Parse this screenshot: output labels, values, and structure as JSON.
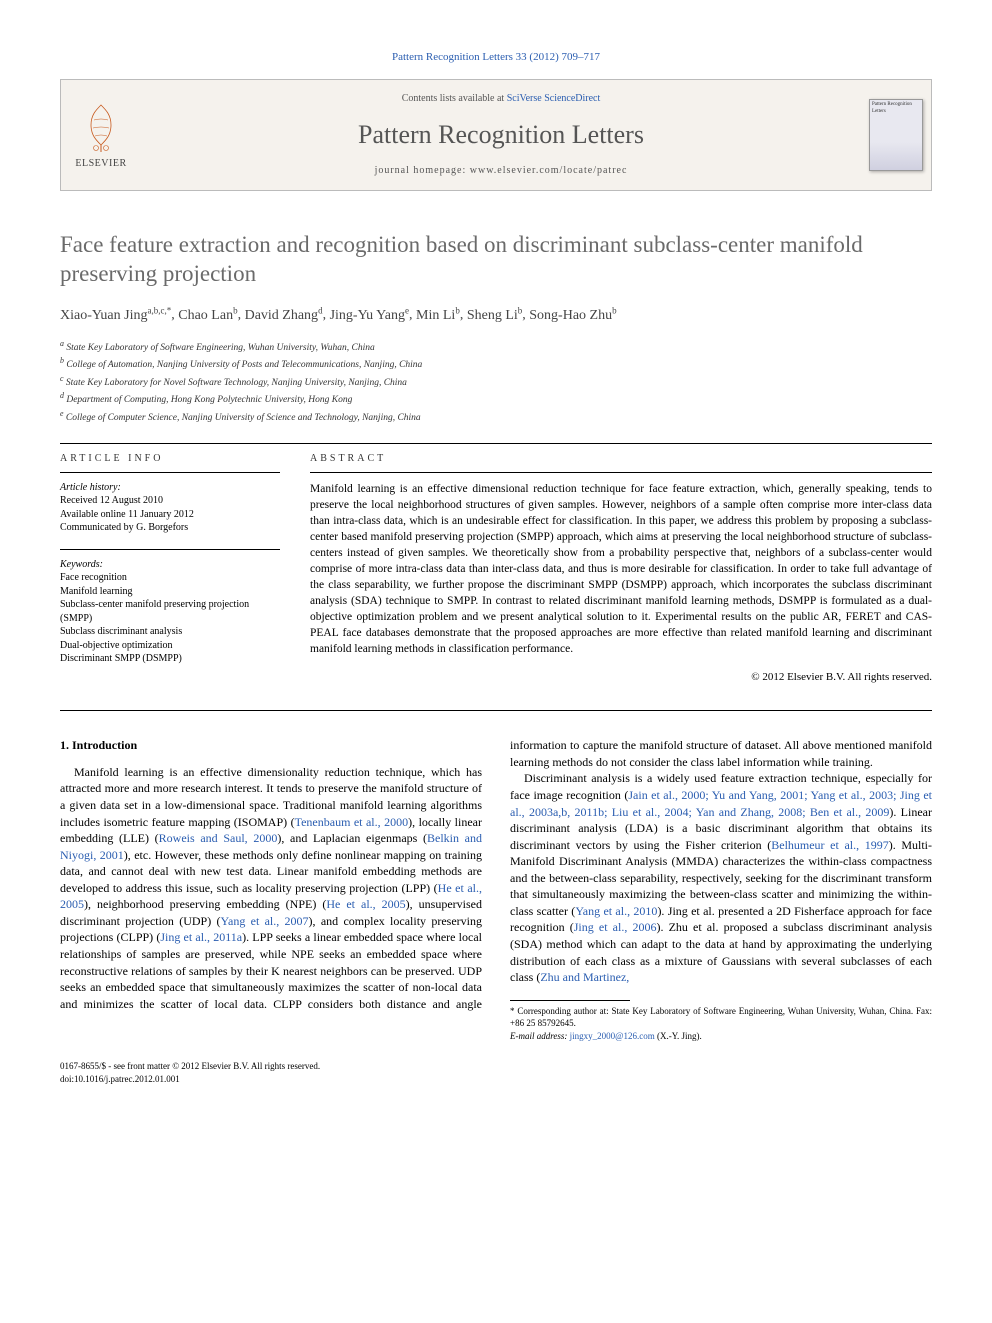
{
  "top_citation": "Pattern Recognition Letters 33 (2012) 709–717",
  "header": {
    "contents_prefix": "Contents lists available at ",
    "contents_link": "SciVerse ScienceDirect",
    "journal_title": "Pattern Recognition Letters",
    "homepage_prefix": "journal homepage: ",
    "homepage_url": "www.elsevier.com/locate/patrec",
    "elsevier_word": "ELSEVIER",
    "cover_text": "Pattern Recognition Letters"
  },
  "article": {
    "title": "Face feature extraction and recognition based on discriminant subclass-center manifold preserving projection",
    "authors_html": "Xiao-Yuan Jing",
    "authors": [
      {
        "name": "Xiao-Yuan Jing",
        "sup": "a,b,c,*"
      },
      {
        "name": "Chao Lan",
        "sup": "b"
      },
      {
        "name": "David Zhang",
        "sup": "d"
      },
      {
        "name": "Jing-Yu Yang",
        "sup": "e"
      },
      {
        "name": "Min Li",
        "sup": "b"
      },
      {
        "name": "Sheng Li",
        "sup": "b"
      },
      {
        "name": "Song-Hao Zhu",
        "sup": "b"
      }
    ],
    "affiliations": [
      {
        "sup": "a",
        "text": "State Key Laboratory of Software Engineering, Wuhan University, Wuhan, China"
      },
      {
        "sup": "b",
        "text": "College of Automation, Nanjing University of Posts and Telecommunications, Nanjing, China"
      },
      {
        "sup": "c",
        "text": "State Key Laboratory for Novel Software Technology, Nanjing University, Nanjing, China"
      },
      {
        "sup": "d",
        "text": "Department of Computing, Hong Kong Polytechnic University, Hong Kong"
      },
      {
        "sup": "e",
        "text": "College of Computer Science, Nanjing University of Science and Technology, Nanjing, China"
      }
    ]
  },
  "info": {
    "label": "ARTICLE INFO",
    "history_label": "Article history:",
    "history": [
      "Received 12 August 2010",
      "Available online 11 January 2012",
      "Communicated by G. Borgefors"
    ],
    "keywords_label": "Keywords:",
    "keywords": [
      "Face recognition",
      "Manifold learning",
      "Subclass-center manifold preserving projection (SMPP)",
      "Subclass discriminant analysis",
      "Dual-objective optimization",
      "Discriminant SMPP (DSMPP)"
    ]
  },
  "abstract": {
    "label": "ABSTRACT",
    "text": "Manifold learning is an effective dimensional reduction technique for face feature extraction, which, generally speaking, tends to preserve the local neighborhood structures of given samples. However, neighbors of a sample often comprise more inter-class data than intra-class data, which is an undesirable effect for classification. In this paper, we address this problem by proposing a subclass-center based manifold preserving projection (SMPP) approach, which aims at preserving the local neighborhood structure of subclass-centers instead of given samples. We theoretically show from a probability perspective that, neighbors of a subclass-center would comprise of more intra-class data than inter-class data, and thus is more desirable for classification. In order to take full advantage of the class separability, we further propose the discriminant SMPP (DSMPP) approach, which incorporates the subclass discriminant analysis (SDA) technique to SMPP. In contrast to related discriminant manifold learning methods, DSMPP is formulated as a dual-objective optimization problem and we present analytical solution to it. Experimental results on the public AR, FERET and CAS-PEAL face databases demonstrate that the proposed approaches are more effective than related manifold learning and discriminant manifold learning methods in classification performance.",
    "copyright": "© 2012 Elsevier B.V. All rights reserved."
  },
  "body": {
    "heading": "1. Introduction",
    "p1a": "Manifold learning is an effective dimensionality reduction technique, which has attracted more and more research interest. It tends to preserve the manifold structure of a given data set in a low-dimensional space. Traditional manifold learning algorithms includes isometric feature mapping (ISOMAP) (",
    "c1": "Tenenbaum et al., 2000",
    "p1b": "), locally linear embedding (LLE) (",
    "c2": "Roweis and Saul, 2000",
    "p1c": "), and Laplacian eigenmaps (",
    "c3": "Belkin and Niyogi, 2001",
    "p1d": "), etc. However, these methods only define nonlinear mapping on training data, and cannot deal with new test data. Linear manifold embedding methods are developed to address this issue, such as locality preserving projection (LPP) (",
    "c4": "He et al., 2005",
    "p1e": "), neighborhood preserving embedding (NPE) (",
    "c5": "He et al., 2005",
    "p1f": "), unsupervised discriminant projection (UDP) (",
    "c6": "Yang et al., 2007",
    "p1g": "), and complex locality preserving projections (CLPP) (",
    "c7": "Jing et al., 2011a",
    "p1h": "). LPP seeks a linear embedded space where local relationships of samples are preserved, while NPE seeks an embedded space where reconstructive relations of sam",
    "p2a": "ples by their K nearest neighbors can be preserved. UDP seeks an embedded space that simultaneously maximizes the scatter of non-local data and minimizes the scatter of local data. CLPP considers both distance and angle information to capture the manifold structure of dataset. All above mentioned manifold learning methods do not consider the class label information while training.",
    "p3a": "Discriminant analysis is a widely used feature extraction technique, especially for face image recognition (",
    "c8": "Jain et al., 2000; Yu and Yang, 2001; Yang et al., 2003; Jing et al., 2003a,b, 2011b; Liu et al., 2004; Yan and Zhang, 2008; Ben et al., 2009",
    "p3b": "). Linear discriminant analysis (LDA) is a basic discriminant algorithm that obtains its discriminant vectors by using the Fisher criterion (",
    "c9": "Belhumeur et al., 1997",
    "p3c": "). Multi-Manifold Discriminant Analysis (MMDA) characterizes the within-class compactness and the between-class separability, respectively, seeking for the discriminant transform that simultaneously maximizing the between-class scatter and minimizing the within-class scatter (",
    "c10": "Yang et al., 2010",
    "p3d": "). Jing et al. presented a 2D Fisherface approach for face recognition (",
    "c11": "Jing et al., 2006",
    "p3e": "). Zhu et al. proposed a subclass discriminant analysis (SDA) method which can adapt to the data at hand by approximating the underlying distribution of each class as a mixture of Gaussians with several subclasses of each class (",
    "c12": "Zhu and Martinez,"
  },
  "footnotes": {
    "corr": "* Corresponding author at: State Key Laboratory of Software Engineering, Wuhan University, Wuhan, China. Fax: +86 25 85792645.",
    "email_label": "E-mail address: ",
    "email": "jingxy_2000@126.com",
    "email_who": " (X.-Y. Jing)."
  },
  "bottom": {
    "line1": "0167-8655/$ - see front matter © 2012 Elsevier B.V. All rights reserved.",
    "line2": "doi:10.1016/j.patrec.2012.01.001"
  },
  "colors": {
    "link": "#2a5db0",
    "title_gray": "#6a6a6a",
    "muted": "#555555",
    "header_bg": "#f5f2ed"
  }
}
